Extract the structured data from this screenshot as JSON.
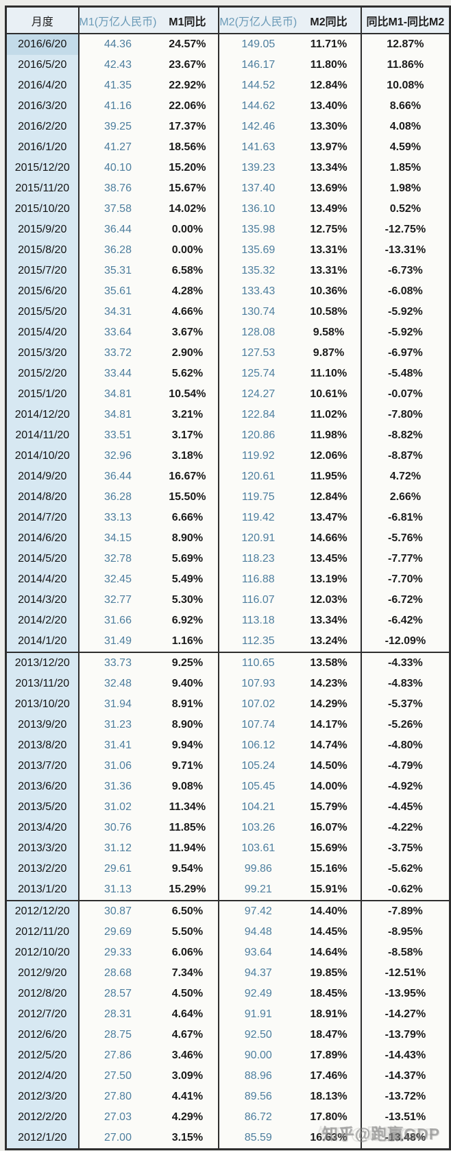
{
  "page": {
    "background": "#ecedea",
    "table_border_color": "#2e2e2e"
  },
  "colors": {
    "value_blue": "#4d7e9e",
    "header_blue": "#6a9ab7",
    "date_cell_bg": "#d7e8f2",
    "first_date_cell_bg": "#c3dbe9",
    "header_bg": "#e9f0f5",
    "black_text": "#1b1b1b"
  },
  "watermark": {
    "text": "知乎@跑赢GDP"
  },
  "table": {
    "thick_separator_after": [
      "2014/1/20",
      "2013/1/20"
    ]
  },
  "chart_data": {
    "type": "table",
    "title": "",
    "columns": [
      "月度",
      "M1(万亿人民币)",
      "M1同比",
      "M2(万亿人民币)",
      "M2同比",
      "同比M1-同比M2"
    ],
    "rows": [
      [
        "2016/6/20",
        "44.36",
        "24.57%",
        "149.05",
        "11.71%",
        "12.87%"
      ],
      [
        "2016/5/20",
        "42.43",
        "23.67%",
        "146.17",
        "11.80%",
        "11.86%"
      ],
      [
        "2016/4/20",
        "41.35",
        "22.92%",
        "144.52",
        "12.84%",
        "10.08%"
      ],
      [
        "2016/3/20",
        "41.16",
        "22.06%",
        "144.62",
        "13.40%",
        "8.66%"
      ],
      [
        "2016/2/20",
        "39.25",
        "17.37%",
        "142.46",
        "13.30%",
        "4.08%"
      ],
      [
        "2016/1/20",
        "41.27",
        "18.56%",
        "141.63",
        "13.97%",
        "4.59%"
      ],
      [
        "2015/12/20",
        "40.10",
        "15.20%",
        "139.23",
        "13.34%",
        "1.85%"
      ],
      [
        "2015/11/20",
        "38.76",
        "15.67%",
        "137.40",
        "13.69%",
        "1.98%"
      ],
      [
        "2015/10/20",
        "37.58",
        "14.02%",
        "136.10",
        "13.49%",
        "0.52%"
      ],
      [
        "2015/9/20",
        "36.44",
        "0.00%",
        "135.98",
        "12.75%",
        "-12.75%"
      ],
      [
        "2015/8/20",
        "36.28",
        "0.00%",
        "135.69",
        "13.31%",
        "-13.31%"
      ],
      [
        "2015/7/20",
        "35.31",
        "6.58%",
        "135.32",
        "13.31%",
        "-6.73%"
      ],
      [
        "2015/6/20",
        "35.61",
        "4.28%",
        "133.43",
        "10.36%",
        "-6.08%"
      ],
      [
        "2015/5/20",
        "34.31",
        "4.66%",
        "130.74",
        "10.58%",
        "-5.92%"
      ],
      [
        "2015/4/20",
        "33.64",
        "3.67%",
        "128.08",
        "9.58%",
        "-5.92%"
      ],
      [
        "2015/3/20",
        "33.72",
        "2.90%",
        "127.53",
        "9.87%",
        "-6.97%"
      ],
      [
        "2015/2/20",
        "33.44",
        "5.62%",
        "125.74",
        "11.10%",
        "-5.48%"
      ],
      [
        "2015/1/20",
        "34.81",
        "10.54%",
        "124.27",
        "10.61%",
        "-0.07%"
      ],
      [
        "2014/12/20",
        "34.81",
        "3.21%",
        "122.84",
        "11.02%",
        "-7.80%"
      ],
      [
        "2014/11/20",
        "33.51",
        "3.17%",
        "120.86",
        "11.98%",
        "-8.82%"
      ],
      [
        "2014/10/20",
        "32.96",
        "3.18%",
        "119.92",
        "12.06%",
        "-8.87%"
      ],
      [
        "2014/9/20",
        "36.44",
        "16.67%",
        "120.61",
        "11.95%",
        "4.72%"
      ],
      [
        "2014/8/20",
        "36.28",
        "15.50%",
        "119.75",
        "12.84%",
        "2.66%"
      ],
      [
        "2014/7/20",
        "33.13",
        "6.66%",
        "119.42",
        "13.47%",
        "-6.81%"
      ],
      [
        "2014/6/20",
        "34.15",
        "8.90%",
        "120.91",
        "14.66%",
        "-5.76%"
      ],
      [
        "2014/5/20",
        "32.78",
        "5.69%",
        "118.23",
        "13.45%",
        "-7.77%"
      ],
      [
        "2014/4/20",
        "32.45",
        "5.49%",
        "116.88",
        "13.19%",
        "-7.70%"
      ],
      [
        "2014/3/20",
        "32.77",
        "5.30%",
        "116.07",
        "12.03%",
        "-6.72%"
      ],
      [
        "2014/2/20",
        "31.66",
        "6.92%",
        "113.18",
        "13.34%",
        "-6.42%"
      ],
      [
        "2014/1/20",
        "31.49",
        "1.16%",
        "112.35",
        "13.24%",
        "-12.09%"
      ],
      [
        "2013/12/20",
        "33.73",
        "9.25%",
        "110.65",
        "13.58%",
        "-4.33%"
      ],
      [
        "2013/11/20",
        "32.48",
        "9.40%",
        "107.93",
        "14.23%",
        "-4.83%"
      ],
      [
        "2013/10/20",
        "31.94",
        "8.91%",
        "107.02",
        "14.29%",
        "-5.37%"
      ],
      [
        "2013/9/20",
        "31.23",
        "8.90%",
        "107.74",
        "14.17%",
        "-5.26%"
      ],
      [
        "2013/8/20",
        "31.41",
        "9.94%",
        "106.12",
        "14.74%",
        "-4.80%"
      ],
      [
        "2013/7/20",
        "31.06",
        "9.71%",
        "105.24",
        "14.50%",
        "-4.79%"
      ],
      [
        "2013/6/20",
        "31.36",
        "9.08%",
        "105.45",
        "14.00%",
        "-4.92%"
      ],
      [
        "2013/5/20",
        "31.02",
        "11.34%",
        "104.21",
        "15.79%",
        "-4.45%"
      ],
      [
        "2013/4/20",
        "30.76",
        "11.85%",
        "103.26",
        "16.07%",
        "-4.22%"
      ],
      [
        "2013/3/20",
        "31.12",
        "11.94%",
        "103.61",
        "15.69%",
        "-3.75%"
      ],
      [
        "2013/2/20",
        "29.61",
        "9.54%",
        "99.86",
        "15.16%",
        "-5.62%"
      ],
      [
        "2013/1/20",
        "31.13",
        "15.29%",
        "99.21",
        "15.91%",
        "-0.62%"
      ],
      [
        "2012/12/20",
        "30.87",
        "6.50%",
        "97.42",
        "14.40%",
        "-7.89%"
      ],
      [
        "2012/11/20",
        "29.69",
        "5.50%",
        "94.48",
        "14.45%",
        "-8.95%"
      ],
      [
        "2012/10/20",
        "29.33",
        "6.06%",
        "93.64",
        "14.64%",
        "-8.58%"
      ],
      [
        "2012/9/20",
        "28.68",
        "7.34%",
        "94.37",
        "19.85%",
        "-12.51%"
      ],
      [
        "2012/8/20",
        "28.57",
        "4.50%",
        "92.49",
        "18.45%",
        "-13.95%"
      ],
      [
        "2012/7/20",
        "28.31",
        "4.64%",
        "91.91",
        "18.91%",
        "-14.27%"
      ],
      [
        "2012/6/20",
        "28.75",
        "4.67%",
        "92.50",
        "18.47%",
        "-13.79%"
      ],
      [
        "2012/5/20",
        "27.86",
        "3.46%",
        "90.00",
        "17.89%",
        "-14.43%"
      ],
      [
        "2012/4/20",
        "27.50",
        "3.09%",
        "88.96",
        "17.46%",
        "-14.37%"
      ],
      [
        "2012/3/20",
        "27.80",
        "4.41%",
        "89.56",
        "18.13%",
        "-13.72%"
      ],
      [
        "2012/2/20",
        "27.03",
        "4.29%",
        "86.72",
        "17.80%",
        "-13.51%"
      ],
      [
        "2012/1/20",
        "27.00",
        "3.15%",
        "85.59",
        "16.63%",
        "-13.48%"
      ]
    ]
  }
}
